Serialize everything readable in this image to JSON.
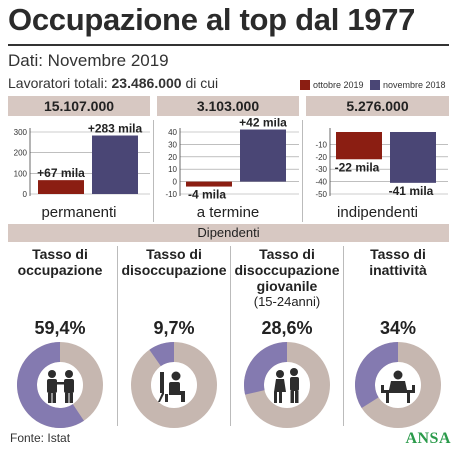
{
  "header": {
    "title": "Occupazione al top dal 1977",
    "subtitle": "Dati: Novembre 2019",
    "totals_prefix": "Lavoratori totali: ",
    "totals_value": "23.486.000",
    "totals_suffix": " di cui"
  },
  "legend": {
    "oct": "ottobre 2019",
    "nov": "novembre 2018"
  },
  "colors": {
    "oct": "#8b1e12",
    "nov": "#4a4675",
    "band": "#d7c8c2",
    "donut_bg": "#c6b7b0",
    "donut_fill": "#847ab0"
  },
  "groups": [
    {
      "value": "15.107.000",
      "label": "permanenti"
    },
    {
      "value": "3.103.000",
      "label": "a termine"
    },
    {
      "value": "5.276.000",
      "label": "indipendenti"
    }
  ],
  "section": {
    "label": "Dipendenti"
  },
  "rates": [
    {
      "title": "Tasso di occupazione",
      "sub": "",
      "value": "59,4%",
      "fraction": 0.594,
      "icon": "workers-icon"
    },
    {
      "title": "Tasso di disoccupazione",
      "sub": "",
      "value": "9,7%",
      "fraction": 0.097,
      "icon": "sitting-person-icon"
    },
    {
      "title": "Tasso di disoccupazione giovanile",
      "sub": "(15-24anni)",
      "value": "28,6%",
      "fraction": 0.286,
      "icon": "young-people-icon"
    },
    {
      "title": "Tasso di inattività",
      "sub": "",
      "value": "34%",
      "fraction": 0.34,
      "icon": "resting-person-icon"
    }
  ],
  "footer": {
    "source": "Fonte: Istat",
    "logo": "ANSA"
  },
  "chart_data": [
    {
      "type": "bar",
      "categories": [
        "permanenti"
      ],
      "series": [
        {
          "name": "ottobre 2019",
          "values": [
            67
          ],
          "label": "+67 mila"
        },
        {
          "name": "novembre 2018",
          "values": [
            283
          ],
          "label": "+283 mila"
        }
      ],
      "yticks": [
        0,
        100,
        200,
        300
      ],
      "ylim": [
        0,
        300
      ],
      "grid": true
    },
    {
      "type": "bar",
      "categories": [
        "a termine"
      ],
      "series": [
        {
          "name": "ottobre 2019",
          "values": [
            -4
          ],
          "label": "-4 mila"
        },
        {
          "name": "novembre 2018",
          "values": [
            42
          ],
          "label": "+42 mila"
        }
      ],
      "yticks": [
        -10,
        0,
        10,
        20,
        30,
        40
      ],
      "ylim": [
        -10,
        40
      ],
      "grid": true
    },
    {
      "type": "bar",
      "categories": [
        "indipendenti"
      ],
      "series": [
        {
          "name": "ottobre 2019",
          "values": [
            -22
          ],
          "label": "-22 mila"
        },
        {
          "name": "novembre 2018",
          "values": [
            -41
          ],
          "label": "-41 mila"
        }
      ],
      "yticks": [
        -10,
        -20,
        -30,
        -40,
        -50
      ],
      "ylim": [
        -50,
        0
      ],
      "grid": true
    }
  ]
}
